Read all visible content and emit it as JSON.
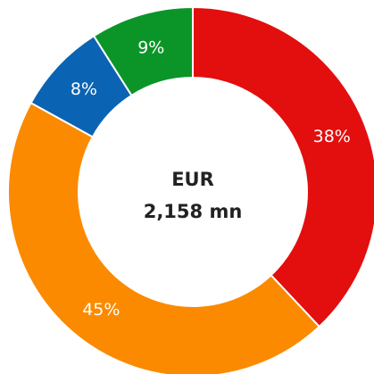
{
  "chart_data": {
    "type": "donut",
    "values": [
      38,
      45,
      8,
      9
    ],
    "value_labels": [
      "38%",
      "45%",
      "8%",
      "9%"
    ],
    "colors": [
      "#e30e0e",
      "#fb8a00",
      "#0b63b3",
      "#0b9528"
    ],
    "center_text": [
      "EUR",
      "2,158 mn"
    ]
  }
}
